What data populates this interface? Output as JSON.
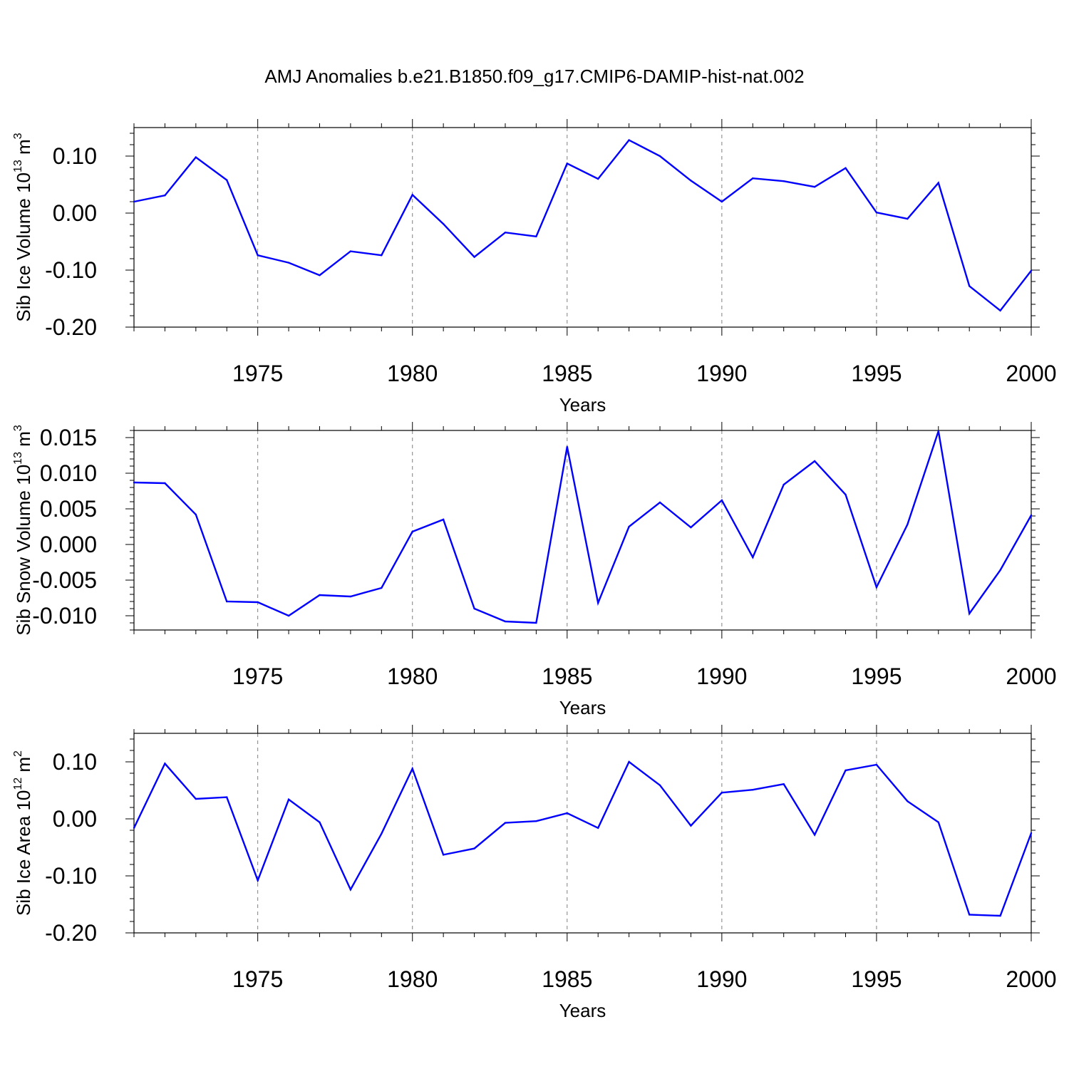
{
  "figure": {
    "title": "AMJ Anomalies b.e21.B1850.f09_g17.CMIP6-DAMIP-hist-nat.002",
    "line_color": "#0000ff",
    "grid_color": "#808080"
  },
  "chart_data": [
    {
      "type": "line",
      "xlabel": "Years",
      "ylabel": {
        "main": "Sib Ice Volume 10",
        "exp": "13",
        "unit": " m",
        "unit_exp": "3"
      },
      "xlim": [
        1971,
        2000
      ],
      "ylim": [
        -0.2,
        0.15
      ],
      "xticks": [
        1975,
        1980,
        1985,
        1990,
        1995,
        2000
      ],
      "xtick_labels": [
        "1975",
        "1980",
        "1985",
        "1990",
        "1995",
        "2000"
      ],
      "yticks": [
        -0.2,
        -0.1,
        0.0,
        0.1
      ],
      "ytick_labels": [
        "-0.20",
        "-0.10",
        "0.00",
        "0.10"
      ],
      "grid": "dashed vertical at x ticks",
      "x": [
        1971,
        1972,
        1973,
        1974,
        1975,
        1976,
        1977,
        1978,
        1979,
        1980,
        1981,
        1982,
        1983,
        1984,
        1985,
        1986,
        1987,
        1988,
        1989,
        1990,
        1991,
        1992,
        1993,
        1994,
        1995,
        1996,
        1997,
        1998,
        1999,
        2000
      ],
      "series": [
        {
          "values": [
            0.02,
            0.031,
            0.098,
            0.058,
            -0.074,
            -0.087,
            -0.109,
            -0.067,
            -0.074,
            0.032,
            -0.019,
            -0.077,
            -0.034,
            -0.041,
            0.087,
            0.06,
            0.128,
            0.1,
            0.057,
            0.02,
            0.061,
            0.056,
            0.046,
            0.079,
            0.001,
            -0.01,
            0.053,
            -0.128,
            -0.171,
            -0.101
          ]
        }
      ]
    },
    {
      "type": "line",
      "xlabel": "Years",
      "ylabel": {
        "main": "Sib Snow Volume 10",
        "exp": "13",
        "unit": " m",
        "unit_exp": "3"
      },
      "xlim": [
        1971,
        2000
      ],
      "ylim": [
        -0.012,
        0.016
      ],
      "xticks": [
        1975,
        1980,
        1985,
        1990,
        1995,
        2000
      ],
      "xtick_labels": [
        "1975",
        "1980",
        "1985",
        "1990",
        "1995",
        "2000"
      ],
      "yticks": [
        -0.01,
        -0.005,
        0.0,
        0.005,
        0.01,
        0.015
      ],
      "ytick_labels": [
        "-0.010",
        "-0.005",
        "0.000",
        "0.005",
        "0.010",
        "0.015"
      ],
      "grid": "dashed vertical at x ticks",
      "x": [
        1971,
        1972,
        1973,
        1974,
        1975,
        1976,
        1977,
        1978,
        1979,
        1980,
        1981,
        1982,
        1983,
        1984,
        1985,
        1986,
        1987,
        1988,
        1989,
        1990,
        1991,
        1992,
        1993,
        1994,
        1995,
        1996,
        1997,
        1998,
        1999,
        2000
      ],
      "series": [
        {
          "values": [
            0.0087,
            0.0086,
            0.0042,
            -0.008,
            -0.0081,
            -0.01,
            -0.0071,
            -0.0073,
            -0.0061,
            0.0018,
            0.0035,
            -0.009,
            -0.0108,
            -0.011,
            0.0137,
            -0.0082,
            0.0025,
            0.0059,
            0.0024,
            0.0062,
            -0.0018,
            0.0084,
            0.0117,
            0.007,
            -0.006,
            0.0028,
            0.0159,
            -0.0097,
            -0.0036,
            0.0041
          ]
        }
      ]
    },
    {
      "type": "line",
      "xlabel": "Years",
      "ylabel": {
        "main": "Sib Ice Area 10",
        "exp": "12",
        "unit": " m",
        "unit_exp": "2"
      },
      "xlim": [
        1971,
        2000
      ],
      "ylim": [
        -0.2,
        0.15
      ],
      "xticks": [
        1975,
        1980,
        1985,
        1990,
        1995,
        2000
      ],
      "xtick_labels": [
        "1975",
        "1980",
        "1985",
        "1990",
        "1995",
        "2000"
      ],
      "yticks": [
        -0.2,
        -0.1,
        0.0,
        0.1
      ],
      "ytick_labels": [
        "-0.20",
        "-0.10",
        "0.00",
        "0.10"
      ],
      "grid": "dashed vertical at x ticks",
      "x": [
        1971,
        1972,
        1973,
        1974,
        1975,
        1976,
        1977,
        1978,
        1979,
        1980,
        1981,
        1982,
        1983,
        1984,
        1985,
        1986,
        1987,
        1988,
        1989,
        1990,
        1991,
        1992,
        1993,
        1994,
        1995,
        1996,
        1997,
        1998,
        1999,
        2000
      ],
      "series": [
        {
          "values": [
            -0.016,
            0.097,
            0.035,
            0.038,
            -0.108,
            0.034,
            -0.006,
            -0.124,
            -0.026,
            0.088,
            -0.063,
            -0.052,
            -0.007,
            -0.004,
            0.01,
            -0.016,
            0.1,
            0.059,
            -0.012,
            0.046,
            0.051,
            0.061,
            -0.028,
            0.085,
            0.095,
            0.031,
            -0.006,
            -0.168,
            -0.17,
            -0.025
          ]
        }
      ]
    }
  ]
}
